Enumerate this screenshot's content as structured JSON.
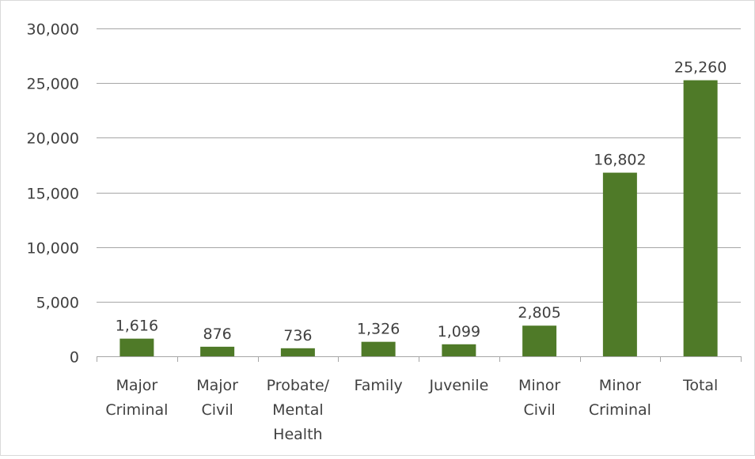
{
  "chart_data": {
    "type": "bar",
    "title": "",
    "xlabel": "",
    "ylabel": "",
    "ylim": [
      0,
      30000
    ],
    "yticks": [
      0,
      5000,
      10000,
      15000,
      20000,
      25000,
      30000
    ],
    "ytick_labels": [
      "0",
      "5,000",
      "10,000",
      "15,000",
      "20,000",
      "25,000",
      "30,000"
    ],
    "grid": true,
    "legend": "none",
    "categories": [
      [
        "Major",
        "Criminal"
      ],
      [
        "Major",
        "Civil"
      ],
      [
        "Probate/",
        "Mental",
        "Health"
      ],
      [
        "Family"
      ],
      [
        "Juvenile"
      ],
      [
        "Minor",
        "Civil"
      ],
      [
        "Minor",
        "Criminal"
      ],
      [
        "Total"
      ]
    ],
    "values": [
      1616,
      876,
      736,
      1326,
      1099,
      2805,
      16802,
      25260
    ],
    "data_labels": [
      "1,616",
      "876",
      "736",
      "1,326",
      "1,099",
      "2,805",
      "16,802",
      "25,260"
    ],
    "colors": {
      "bar": "#4f7a28",
      "grid": "#a6a6a6",
      "axis": "#a6a6a6",
      "text": "#404040",
      "border": "#d9d9d9"
    }
  }
}
